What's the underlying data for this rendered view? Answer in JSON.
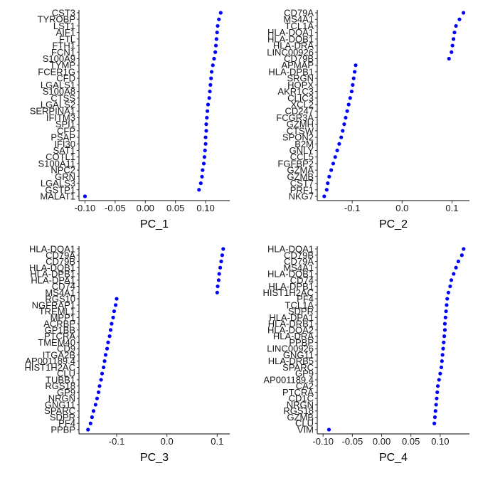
{
  "chart_data": [
    {
      "type": "scatter",
      "title": "",
      "xlabel": "PC_1",
      "ylabel": "",
      "xlim": [
        -0.11,
        0.14
      ],
      "xticks": [
        -0.1,
        -0.05,
        0.0,
        0.05,
        0.1
      ],
      "tick_labels": [
        "-0.10",
        "-0.05",
        "0.00",
        "0.05",
        "0.10"
      ],
      "point_color": "#0000ff",
      "genes": [
        "CST3",
        "TYROBP",
        "LST1",
        "AIF1",
        "FTL",
        "FTH1",
        "FCN1",
        "S100A9",
        "TYMP",
        "FCER1G",
        "CFD",
        "LGALS1",
        "S100A8",
        "CTSS",
        "LGALS2",
        "SERPINA1",
        "IFITM3",
        "SPI1",
        "CFP",
        "PSAP",
        "IFI30",
        "SAT1",
        "COTL1",
        "S100A11",
        "NPC2",
        "GRN",
        "LGALS3",
        "GSTP1",
        "MALAT1"
      ],
      "values": [
        0.125,
        0.122,
        0.12,
        0.119,
        0.118,
        0.117,
        0.116,
        0.114,
        0.112,
        0.11,
        0.109,
        0.108,
        0.107,
        0.106,
        0.104,
        0.103,
        0.102,
        0.101,
        0.101,
        0.1,
        0.1,
        0.099,
        0.098,
        0.097,
        0.095,
        0.094,
        0.092,
        0.089,
        -0.1
      ]
    },
    {
      "type": "scatter",
      "title": "",
      "xlabel": "PC_2",
      "ylabel": "",
      "xlim": [
        -0.17,
        0.135
      ],
      "xticks": [
        -0.1,
        0.0,
        0.1
      ],
      "tick_labels": [
        "-0.1",
        "0.0",
        "0.1"
      ],
      "point_color": "#0000ff",
      "genes": [
        "CD79A",
        "MS4A1",
        "TCL1A",
        "HLA-DQA1",
        "HLA-DQB1",
        "HLA-DRA",
        "LINC00926",
        "CD79B",
        "APMAP",
        "HLA-DPB1",
        "SRGN",
        "HOPX",
        "AKR1C3",
        "CLIC3",
        "XCL2",
        "CD247",
        "FCGR3A",
        "GZMH",
        "CTSW",
        "SPON2",
        "B2M",
        "GNLY",
        "CCL5",
        "FGFBP2",
        "GZMA",
        "GZMB",
        "CST7",
        "PRF1",
        "NKG7"
      ],
      "values": [
        0.123,
        0.115,
        0.108,
        0.105,
        0.103,
        0.101,
        0.099,
        0.094,
        -0.093,
        -0.095,
        -0.097,
        -0.099,
        -0.101,
        -0.104,
        -0.107,
        -0.11,
        -0.113,
        -0.116,
        -0.119,
        -0.122,
        -0.126,
        -0.13,
        -0.134,
        -0.138,
        -0.142,
        -0.146,
        -0.149,
        -0.151,
        -0.156
      ]
    },
    {
      "type": "scatter",
      "title": "",
      "xlabel": "PC_3",
      "ylabel": "",
      "xlim": [
        -0.175,
        0.125
      ],
      "xticks": [
        -0.1,
        0.0,
        0.1
      ],
      "tick_labels": [
        "-0.1",
        "0.0",
        "0.1"
      ],
      "point_color": "#0000ff",
      "genes": [
        "HLA-DQA1",
        "CD79A",
        "CD79B",
        "HLA-DQB1",
        "HLA-DPB1",
        "HLA-DPA1",
        "CD74",
        "MS4A1",
        "RGS10",
        "NGFRAP1",
        "TREML1",
        "MPP1",
        "ACRBP",
        "GP1BB",
        "PTCRA",
        "TMEM40",
        "CD9",
        "ITGA2B",
        "AP001189.4",
        "HIST1H2AC",
        "CLU",
        "TUBB1",
        "RGS18",
        "GP9",
        "NRGN",
        "GNG11",
        "SPARC",
        "SDPR",
        "PF4",
        "PPBP"
      ],
      "values": [
        0.112,
        0.11,
        0.108,
        0.106,
        0.104,
        0.103,
        0.101,
        0.1,
        -0.1,
        -0.102,
        -0.105,
        -0.107,
        -0.11,
        -0.112,
        -0.114,
        -0.117,
        -0.119,
        -0.122,
        -0.124,
        -0.126,
        -0.129,
        -0.131,
        -0.134,
        -0.136,
        -0.139,
        -0.142,
        -0.146,
        -0.149,
        -0.152,
        -0.157
      ]
    },
    {
      "type": "scatter",
      "title": "",
      "xlabel": "PC_4",
      "ylabel": "",
      "xlim": [
        -0.11,
        0.15
      ],
      "xticks": [
        -0.1,
        -0.05,
        0.0,
        0.05,
        0.1
      ],
      "tick_labels": [
        "-0.10",
        "-0.05",
        "0.00",
        "0.05",
        "0.10"
      ],
      "point_color": "#0000ff",
      "genes": [
        "HLA-DQA1",
        "CD79B",
        "CD79A",
        "MS4A1",
        "HLA-DQB1",
        "CD74",
        "HLA-DPB1",
        "HIST1H2AC",
        "PF4",
        "TCL1A",
        "SDPR",
        "HLA-DPA1",
        "HLA-DRB1",
        "HLA-DQA2",
        "HLA-DRA",
        "PPBP",
        "LINC00926",
        "GNG11",
        "HLA-DRB5",
        "SPARC",
        "GP9",
        "AP001189.4",
        "CA2",
        "PTCRA",
        "CD1C",
        "NRGN",
        "RGS18",
        "GZMB",
        "CLU",
        "VIM"
      ],
      "values": [
        0.14,
        0.137,
        0.131,
        0.127,
        0.123,
        0.119,
        0.117,
        0.114,
        0.112,
        0.111,
        0.11,
        0.109,
        0.108,
        0.108,
        0.107,
        0.106,
        0.105,
        0.104,
        0.103,
        0.102,
        0.1,
        0.098,
        0.096,
        0.095,
        0.094,
        0.093,
        0.092,
        0.091,
        0.09,
        -0.09
      ]
    }
  ]
}
